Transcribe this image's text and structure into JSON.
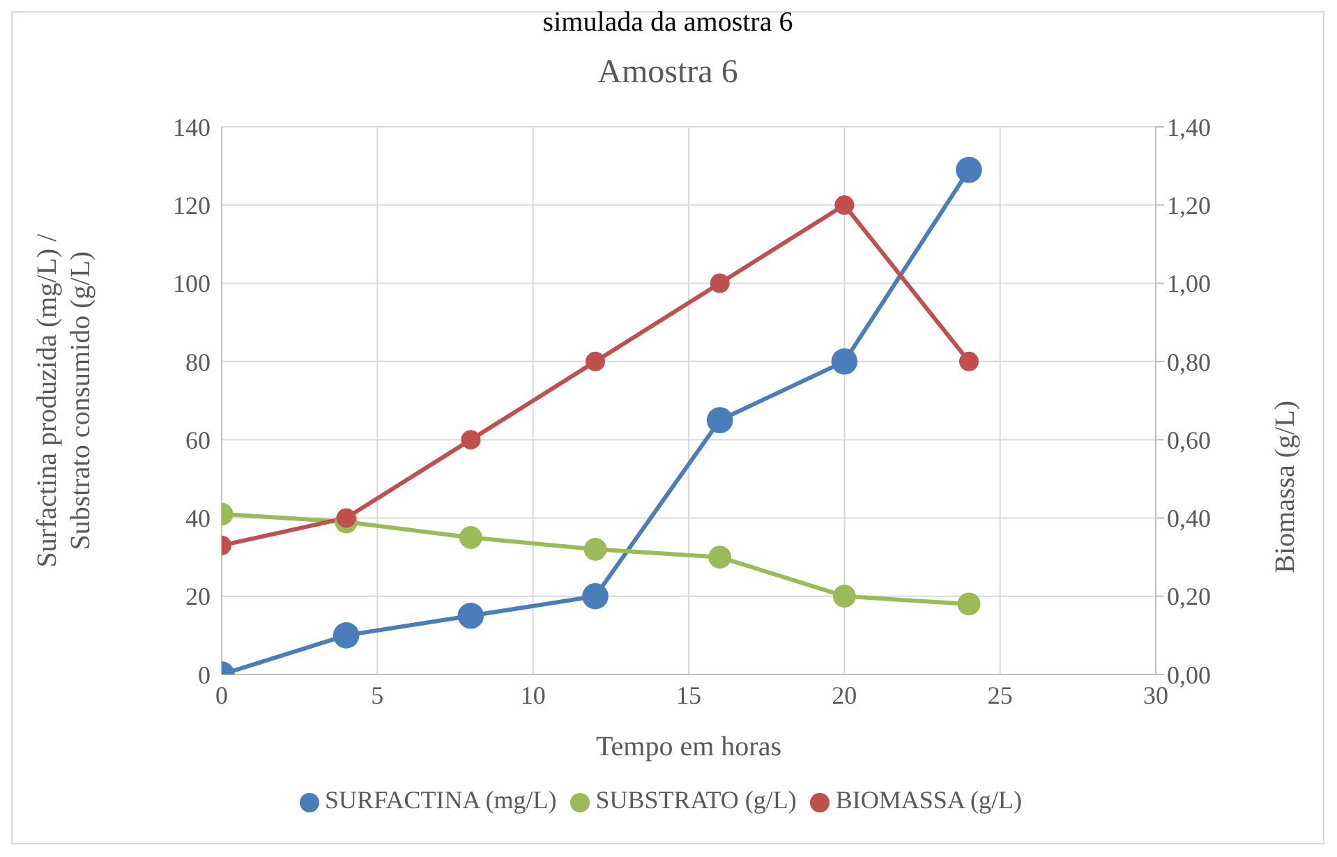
{
  "chart_data": {
    "type": "line",
    "title": "Amostra 6",
    "annotations": [
      "simulada da amostra 6"
    ],
    "xlabel": "Tempo em horas",
    "ylabel": "Surfactina produzida  (mg/L) /\nSubstrato consumido (g/L)",
    "y2label": "Biomassa (g/L)",
    "x": [
      0,
      4,
      8,
      12,
      16,
      20,
      24
    ],
    "xlim": [
      0,
      30
    ],
    "xticks": [
      0,
      5,
      10,
      15,
      20,
      25,
      30
    ],
    "ylim": [
      0,
      140
    ],
    "yticks": [
      0,
      20,
      40,
      60,
      80,
      100,
      120,
      140
    ],
    "y2lim": [
      0,
      1.4
    ],
    "y2ticks": [
      {
        "value": 0,
        "label": "0,00"
      },
      {
        "value": 0.2,
        "label": "0,20"
      },
      {
        "value": 0.4,
        "label": "0,40"
      },
      {
        "value": 0.6,
        "label": "0,60"
      },
      {
        "value": 0.8,
        "label": "0,80"
      },
      {
        "value": 1.0,
        "label": "1,00"
      },
      {
        "value": 1.2,
        "label": "1,20"
      },
      {
        "value": 1.4,
        "label": "1,40"
      }
    ],
    "grid": true,
    "legend": "bottom",
    "marker": "circle",
    "series": [
      {
        "name": "SURFACTINA (mg/L)",
        "color": "#4a7ebb",
        "values": [
          0,
          10,
          15,
          20,
          65,
          80,
          129
        ]
      },
      {
        "name": "SUBSTRATO (g/L)",
        "color": "#9bbb59",
        "values": [
          41,
          39,
          35,
          32,
          30,
          20,
          18
        ]
      },
      {
        "name": "BIOMASSA (g/L)",
        "color": "#c0504d",
        "axis": "y2",
        "values": [
          0.33,
          0.4,
          0.6,
          0.8,
          1.0,
          1.2,
          0.8
        ]
      }
    ]
  }
}
